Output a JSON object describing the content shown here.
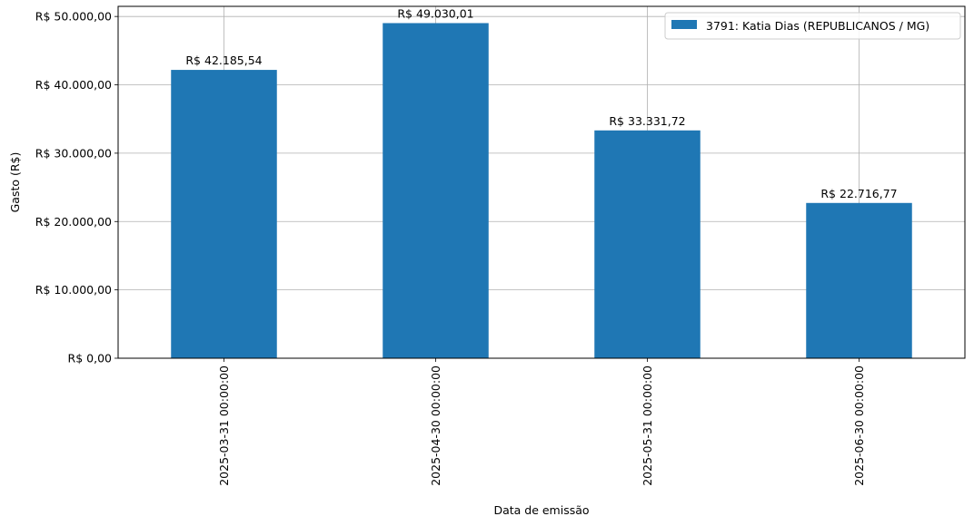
{
  "chart_data": {
    "type": "bar",
    "title": "",
    "xlabel": "Data de emissão",
    "ylabel": "Gasto (R$)",
    "categories": [
      "2025-03-31 00:00:00",
      "2025-04-30 00:00:00",
      "2025-05-31 00:00:00",
      "2025-06-30 00:00:00"
    ],
    "series": [
      {
        "name": "3791: Katia Dias (REPUBLICANOS / MG)",
        "values": [
          42185.54,
          49030.01,
          33331.72,
          22716.77
        ],
        "labels": [
          "R$ 42.185,54",
          "R$ 49.030,01",
          "R$ 33.331,72",
          "R$ 22.716,77"
        ],
        "color": "#1f77b4"
      }
    ],
    "ylim": [
      0,
      51482
    ],
    "yticks": [
      0,
      10000,
      20000,
      30000,
      40000,
      50000
    ],
    "ytick_labels": [
      "R$ 0,00",
      "R$ 10.000,00",
      "R$ 20.000,00",
      "R$ 30.000,00",
      "R$ 40.000,00",
      "R$ 50.000,00"
    ],
    "grid": true,
    "legend_position": "top-right"
  }
}
